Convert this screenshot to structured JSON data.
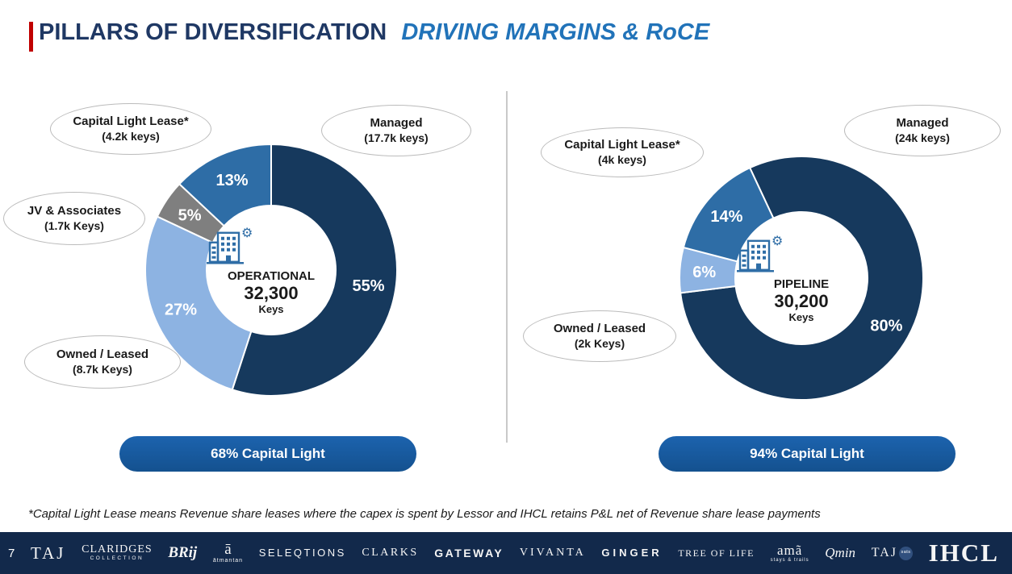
{
  "page": {
    "title_main": "PILLARS OF DIVERSIFICATION",
    "title_sub": "DRIVING MARGINS & RoCE",
    "footnote": "*Capital Light Lease means Revenue share leases where the capex is spent by Lessor and IHCL retains P&L net of Revenue share lease payments",
    "page_number": "7"
  },
  "colors": {
    "accent_red": "#C00000",
    "title_navy": "#1F3864",
    "title_blue": "#2173B9",
    "donut_navy": "#16395D",
    "donut_blue": "#2E6DA6",
    "donut_lightblue": "#8DB3E2",
    "donut_gray": "#7F7F7F",
    "pill_blue": "#1659A6",
    "footer_navy": "#12294B"
  },
  "chart_data": [
    {
      "type": "donut",
      "name": "operational",
      "center_label": "OPERATIONAL",
      "center_value": "32,300",
      "center_unit": "Keys",
      "badge": "68% Capital Light",
      "start_angle": 0,
      "slices": [
        {
          "label": "Managed",
          "sublabel": "(17.7k keys)",
          "pct": 55,
          "color": "#16395D"
        },
        {
          "label": "Owned / Leased",
          "sublabel": "(8.7k Keys)",
          "pct": 27,
          "color": "#8DB3E2"
        },
        {
          "label": "JV & Associates",
          "sublabel": "(1.7k Keys)",
          "pct": 5,
          "color": "#7F7F7F"
        },
        {
          "label": "Capital Light Lease*",
          "sublabel": "(4.2k keys)",
          "pct": 13,
          "color": "#2E6DA6"
        }
      ]
    },
    {
      "type": "donut",
      "name": "pipeline",
      "center_label": "PIPELINE",
      "center_value": "30,200",
      "center_unit": "Keys",
      "badge": "94% Capital Light",
      "start_angle": -25,
      "slices": [
        {
          "label": "Managed",
          "sublabel": "(24k keys)",
          "pct": 80,
          "color": "#16395D"
        },
        {
          "label": "Owned / Leased",
          "sublabel": "(2k Keys)",
          "pct": 6,
          "color": "#8DB3E2"
        },
        {
          "label": "Capital Light Lease*",
          "sublabel": "(4k keys)",
          "pct": 14,
          "color": "#2E6DA6"
        }
      ]
    }
  ],
  "footer": {
    "brands": [
      {
        "name": "TAJ"
      },
      {
        "name": "CLARIDGES",
        "sub": "COLLECTION"
      },
      {
        "name": "BRij"
      },
      {
        "name": "ā",
        "sub": "ātmantan"
      },
      {
        "name": "SELEQTIONS"
      },
      {
        "name": "CLARKS"
      },
      {
        "name": "GATEWAY"
      },
      {
        "name": "VIVANTA"
      },
      {
        "name": "GINGER"
      },
      {
        "name": "TREE OF LIFE"
      },
      {
        "name": "amã",
        "sub": "stays & trails"
      },
      {
        "name": "Qmin"
      },
      {
        "name": "TAJ",
        "badge": "sats"
      },
      {
        "name": "IHCL"
      }
    ]
  }
}
